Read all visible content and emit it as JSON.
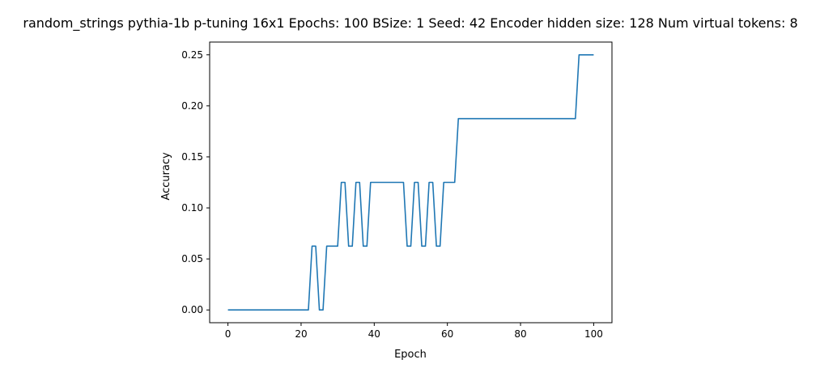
{
  "chart_data": {
    "type": "line",
    "title": "random_strings pythia-1b p-tuning 16x1 Epochs: 100 BSize: 1 Seed: 42 Encoder hidden size: 128 Num virtual tokens: 8",
    "xlabel": "Epoch",
    "ylabel": "Accuracy",
    "xlim": [
      -5,
      105
    ],
    "ylim": [
      -0.0125,
      0.2625
    ],
    "grid": false,
    "xticks": [
      0,
      20,
      40,
      60,
      80,
      100
    ],
    "xtick_labels": [
      "0",
      "20",
      "40",
      "60",
      "80",
      "100"
    ],
    "yticks": [
      0.0,
      0.05,
      0.1,
      0.15,
      0.2,
      0.25
    ],
    "ytick_labels": [
      "0.00",
      "0.05",
      "0.10",
      "0.15",
      "0.20",
      "0.25"
    ],
    "series": [
      {
        "color": "#1f77b4",
        "x": [
          0,
          1,
          2,
          3,
          4,
          5,
          6,
          7,
          8,
          9,
          10,
          11,
          12,
          13,
          14,
          15,
          16,
          17,
          18,
          19,
          20,
          21,
          22,
          23,
          24,
          25,
          26,
          27,
          28,
          29,
          30,
          31,
          32,
          33,
          34,
          35,
          36,
          37,
          38,
          39,
          40,
          41,
          42,
          43,
          44,
          45,
          46,
          47,
          48,
          49,
          50,
          51,
          52,
          53,
          54,
          55,
          56,
          57,
          58,
          59,
          60,
          61,
          62,
          63,
          64,
          65,
          66,
          67,
          68,
          69,
          70,
          71,
          72,
          73,
          74,
          75,
          76,
          77,
          78,
          79,
          80,
          81,
          82,
          83,
          84,
          85,
          86,
          87,
          88,
          89,
          90,
          91,
          92,
          93,
          94,
          95,
          96,
          97,
          98,
          99,
          100
        ],
        "y": [
          0,
          0,
          0,
          0,
          0,
          0,
          0,
          0,
          0,
          0,
          0,
          0,
          0,
          0,
          0,
          0,
          0,
          0,
          0,
          0,
          0,
          0,
          0,
          0.0625,
          0.0625,
          0,
          0,
          0.0625,
          0.0625,
          0.0625,
          0.0625,
          0.125,
          0.125,
          0.0625,
          0.0625,
          0.125,
          0.125,
          0.0625,
          0.0625,
          0.125,
          0.125,
          0.125,
          0.125,
          0.125,
          0.125,
          0.125,
          0.125,
          0.125,
          0.125,
          0.0625,
          0.0625,
          0.125,
          0.125,
          0.0625,
          0.0625,
          0.125,
          0.125,
          0.0625,
          0.0625,
          0.125,
          0.125,
          0.125,
          0.125,
          0.1875,
          0.1875,
          0.1875,
          0.1875,
          0.1875,
          0.1875,
          0.1875,
          0.1875,
          0.1875,
          0.1875,
          0.1875,
          0.1875,
          0.1875,
          0.1875,
          0.1875,
          0.1875,
          0.1875,
          0.1875,
          0.1875,
          0.1875,
          0.1875,
          0.1875,
          0.1875,
          0.1875,
          0.1875,
          0.1875,
          0.1875,
          0.1875,
          0.1875,
          0.1875,
          0.1875,
          0.1875,
          0.1875,
          0.25,
          0.25,
          0.25,
          0.25,
          0.25
        ]
      }
    ]
  }
}
